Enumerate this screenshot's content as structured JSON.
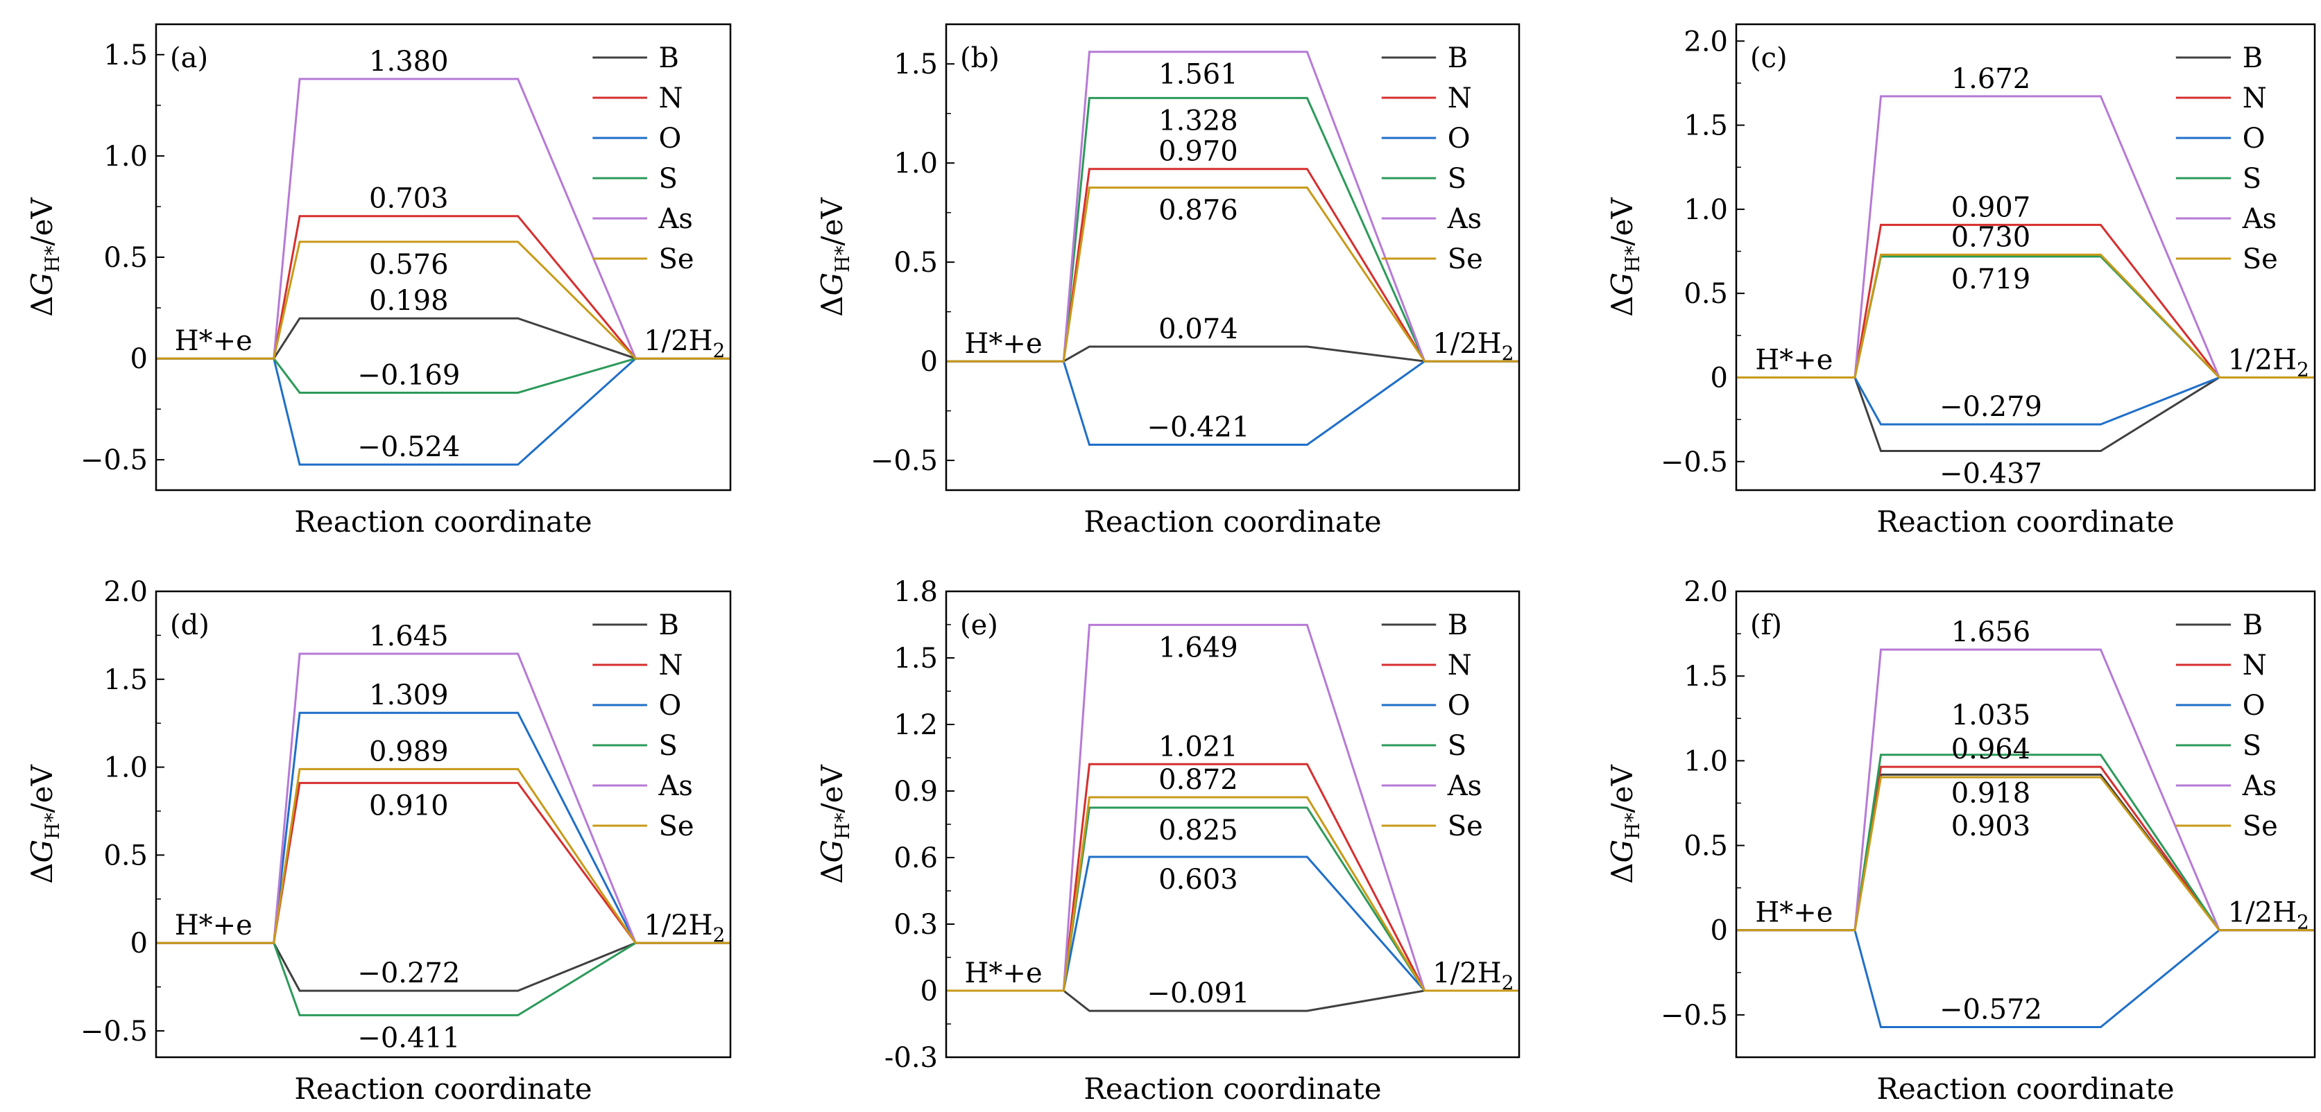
{
  "figure": {
    "series_styles": [
      {
        "name": "B",
        "color": "#404040"
      },
      {
        "name": "N",
        "color": "#d62f2f"
      },
      {
        "name": "O",
        "color": "#1f6fc8"
      },
      {
        "name": "S",
        "color": "#2c9a5a"
      },
      {
        "name": "As",
        "color": "#b67ad6"
      },
      {
        "name": "Se",
        "color": "#c89a18"
      }
    ]
  },
  "chart_data": [
    {
      "type": "line",
      "panel_label": "(a)",
      "xlabel": "Reaction coordinate",
      "ylabel": "ΔG_H*/eV",
      "start_label": "H*+e",
      "end_label": "1/2H2",
      "ylim": [
        -0.65,
        1.65
      ],
      "yticks": [
        -0.5,
        0,
        0.5,
        1.0,
        1.5
      ],
      "ytick_labels": [
        "−0.5",
        "0",
        "0.5",
        "1.0",
        "1.5"
      ],
      "legend_position": "top-right",
      "series": [
        {
          "name": "B",
          "values": [
            0,
            0.198,
            0
          ],
          "label": "0.198",
          "label_pos": "above"
        },
        {
          "name": "N",
          "values": [
            0,
            0.703,
            0
          ],
          "label": "0.703",
          "label_pos": "above"
        },
        {
          "name": "O",
          "values": [
            0,
            -0.524,
            0
          ],
          "label": "−0.524",
          "label_pos": "above"
        },
        {
          "name": "S",
          "values": [
            0,
            -0.169,
            0
          ],
          "label": "−0.169",
          "label_pos": "above"
        },
        {
          "name": "As",
          "values": [
            0,
            1.38,
            0
          ],
          "label": "1.380",
          "label_pos": "above"
        },
        {
          "name": "Se",
          "values": [
            0,
            0.576,
            0
          ],
          "label": "0.576",
          "label_pos": "below"
        }
      ]
    },
    {
      "type": "line",
      "panel_label": "(b)",
      "xlabel": "Reaction coordinate",
      "ylabel": "ΔG_H*/eV",
      "start_label": "H*+e",
      "end_label": "1/2H2",
      "ylim": [
        -0.65,
        1.7
      ],
      "yticks": [
        -0.5,
        0,
        0.5,
        1.0,
        1.5
      ],
      "ytick_labels": [
        "−0.5",
        "0",
        "0.5",
        "1.0",
        "1.5"
      ],
      "legend_position": "top-right",
      "series": [
        {
          "name": "B",
          "values": [
            0,
            0.074,
            0
          ],
          "label": "0.074",
          "label_pos": "above"
        },
        {
          "name": "N",
          "values": [
            0,
            0.97,
            0
          ],
          "label": "0.970",
          "label_pos": "above"
        },
        {
          "name": "O",
          "values": [
            0,
            -0.421,
            0
          ],
          "label": "−0.421",
          "label_pos": "above"
        },
        {
          "name": "S",
          "values": [
            0,
            1.328,
            0
          ],
          "label": "1.328",
          "label_pos": "below"
        },
        {
          "name": "As",
          "values": [
            0,
            1.561,
            0
          ],
          "label": "1.561",
          "label_pos": "below"
        },
        {
          "name": "Se",
          "values": [
            0,
            0.876,
            0
          ],
          "label": "0.876",
          "label_pos": "below"
        }
      ]
    },
    {
      "type": "line",
      "panel_label": "(c)",
      "xlabel": "Reaction coordinate",
      "ylabel": "ΔG_H*/eV",
      "start_label": "H*+e",
      "end_label": "1/2H2",
      "ylim": [
        -0.67,
        2.1
      ],
      "yticks": [
        -0.5,
        0,
        0.5,
        1.0,
        1.5,
        2.0
      ],
      "ytick_labels": [
        "−0.5",
        "0",
        "0.5",
        "1.0",
        "1.5",
        "2.0"
      ],
      "legend_position": "top-right",
      "series": [
        {
          "name": "B",
          "values": [
            0,
            -0.437,
            0
          ],
          "label": "−0.437",
          "label_pos": "below"
        },
        {
          "name": "N",
          "values": [
            0,
            0.907,
            0
          ],
          "label": "0.907",
          "label_pos": "above"
        },
        {
          "name": "O",
          "values": [
            0,
            -0.279,
            0
          ],
          "label": "−0.279",
          "label_pos": "above"
        },
        {
          "name": "S",
          "values": [
            0,
            0.719,
            0
          ],
          "label": "0.719",
          "label_pos": "below"
        },
        {
          "name": "As",
          "values": [
            0,
            1.672,
            0
          ],
          "label": "1.672",
          "label_pos": "above"
        },
        {
          "name": "Se",
          "values": [
            0,
            0.73,
            0
          ],
          "label": "0.730",
          "label_pos": "above"
        }
      ]
    },
    {
      "type": "line",
      "panel_label": "(d)",
      "xlabel": "Reaction coordinate",
      "ylabel": "ΔG_H*/eV",
      "start_label": "H*+e",
      "end_label": "1/2H2",
      "ylim": [
        -0.65,
        2.0
      ],
      "yticks": [
        -0.5,
        0,
        0.5,
        1.0,
        1.5,
        2.0
      ],
      "ytick_labels": [
        "−0.5",
        "0",
        "0.5",
        "1.0",
        "1.5",
        "2.0"
      ],
      "legend_position": "top-right",
      "series": [
        {
          "name": "B",
          "values": [
            0,
            -0.272,
            0
          ],
          "label": "−0.272",
          "label_pos": "above"
        },
        {
          "name": "N",
          "values": [
            0,
            0.91,
            0
          ],
          "label": "0.910",
          "label_pos": "below"
        },
        {
          "name": "O",
          "values": [
            0,
            1.309,
            0
          ],
          "label": "1.309",
          "label_pos": "above"
        },
        {
          "name": "S",
          "values": [
            0,
            -0.411,
            0
          ],
          "label": "−0.411",
          "label_pos": "below"
        },
        {
          "name": "As",
          "values": [
            0,
            1.645,
            0
          ],
          "label": "1.645",
          "label_pos": "above"
        },
        {
          "name": "Se",
          "values": [
            0,
            0.989,
            0
          ],
          "label": "0.989",
          "label_pos": "above"
        }
      ]
    },
    {
      "type": "line",
      "panel_label": "(e)",
      "xlabel": "Reaction coordinate",
      "ylabel": "ΔG_H*/eV",
      "start_label": "H*+e",
      "end_label": "1/2H2",
      "ylim": [
        -0.3,
        1.8
      ],
      "yticks": [
        -0.3,
        0,
        0.3,
        0.6,
        0.9,
        1.2,
        1.5,
        1.8
      ],
      "ytick_labels": [
        "-0.3",
        "0",
        "0.3",
        "0.6",
        "0.9",
        "1.2",
        "1.5",
        "1.8"
      ],
      "legend_position": "top-right",
      "series": [
        {
          "name": "B",
          "values": [
            0,
            -0.091,
            0
          ],
          "label": "−0.091",
          "label_pos": "above"
        },
        {
          "name": "N",
          "values": [
            0,
            1.021,
            0
          ],
          "label": "1.021",
          "label_pos": "above"
        },
        {
          "name": "O",
          "values": [
            0,
            0.603,
            0
          ],
          "label": "0.603",
          "label_pos": "below"
        },
        {
          "name": "S",
          "values": [
            0,
            0.825,
            0
          ],
          "label": "0.825",
          "label_pos": "below"
        },
        {
          "name": "As",
          "values": [
            0,
            1.649,
            0
          ],
          "label": "1.649",
          "label_pos": "below"
        },
        {
          "name": "Se",
          "values": [
            0,
            0.872,
            0
          ],
          "label": "0.872",
          "label_pos": "above"
        }
      ]
    },
    {
      "type": "line",
      "panel_label": "(f)",
      "xlabel": "Reaction coordinate",
      "ylabel": "ΔG_H*/eV",
      "start_label": "H*+e",
      "end_label": "1/2H2",
      "ylim": [
        -0.75,
        2.0
      ],
      "yticks": [
        -0.5,
        0,
        0.5,
        1.0,
        1.5,
        2.0
      ],
      "ytick_labels": [
        "−0.5",
        "0",
        "0.5",
        "1.0",
        "1.5",
        "2.0"
      ],
      "legend_position": "top-right",
      "series": [
        {
          "name": "B",
          "values": [
            0,
            0.918,
            0
          ],
          "label": "0.918",
          "label_pos": "below1"
        },
        {
          "name": "N",
          "values": [
            0,
            0.964,
            0
          ],
          "label": "0.964",
          "label_pos": "above"
        },
        {
          "name": "O",
          "values": [
            0,
            -0.572,
            0
          ],
          "label": "−0.572",
          "label_pos": "above"
        },
        {
          "name": "S",
          "values": [
            0,
            1.035,
            0
          ],
          "label": "1.035",
          "label_pos": "above2"
        },
        {
          "name": "As",
          "values": [
            0,
            1.656,
            0
          ],
          "label": "1.656",
          "label_pos": "above"
        },
        {
          "name": "Se",
          "values": [
            0,
            0.903,
            0
          ],
          "label": "0.903",
          "label_pos": "below2"
        }
      ]
    }
  ]
}
